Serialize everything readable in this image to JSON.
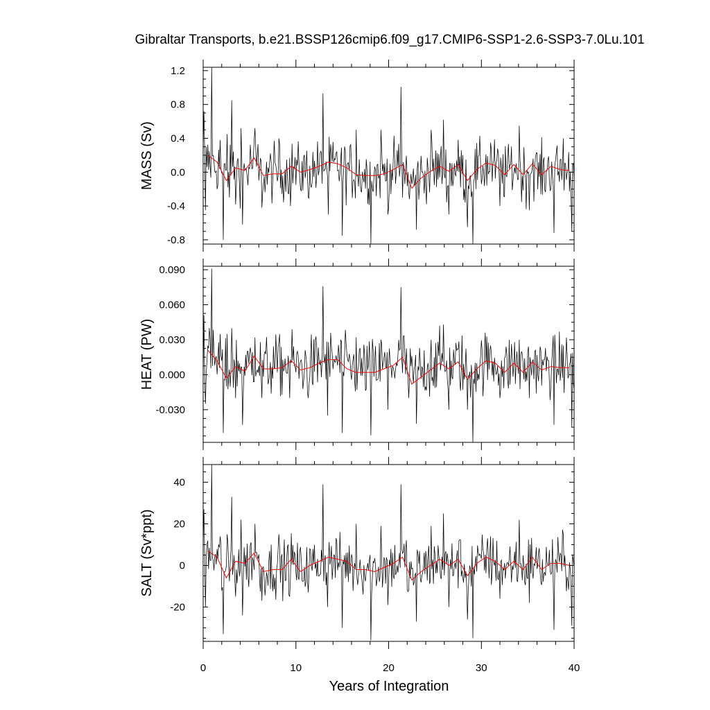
{
  "title": "Gibraltar Transports, b.e21.BSSP126cmip6.f09_g17.CMIP6-SSP1-2.6-SSP3-7.0Lu.101",
  "xlabel": "Years of Integration",
  "colors": {
    "monthly": "#000000",
    "annual": "#ff0000"
  },
  "chart_data": [
    {
      "type": "line",
      "title": "",
      "ylabel": "MASS (Sv)",
      "xlim": [
        0,
        40
      ],
      "ylim": [
        -0.85,
        1.24
      ],
      "yticks": [
        -0.8,
        -0.4,
        0.0,
        0.4,
        0.8,
        1.2
      ],
      "ytick_labels": [
        "-0.8",
        "-0.4",
        "0.0",
        "0.4",
        "0.8",
        "1.2"
      ],
      "xticks": [
        0,
        10,
        20,
        30,
        40
      ],
      "spikes": [
        [
          0.08,
          0.72
        ],
        [
          0.25,
          -0.45
        ],
        [
          0.95,
          1.24
        ],
        [
          1.8,
          0.38
        ],
        [
          2.15,
          -0.8
        ],
        [
          2.6,
          0.45
        ],
        [
          3.1,
          0.85
        ],
        [
          3.5,
          -0.38
        ],
        [
          4.1,
          0.52
        ],
        [
          4.25,
          -0.62
        ],
        [
          5.6,
          0.52
        ],
        [
          6.3,
          -0.42
        ],
        [
          8.2,
          0.4
        ],
        [
          9.4,
          -0.4
        ],
        [
          11.3,
          -0.3
        ],
        [
          12.95,
          0.93
        ],
        [
          13.5,
          -0.5
        ],
        [
          15.0,
          -0.75
        ],
        [
          16.5,
          0.5
        ],
        [
          18.1,
          -0.85
        ],
        [
          19.2,
          0.5
        ],
        [
          19.9,
          -0.5
        ],
        [
          21.3,
          1.01
        ],
        [
          21.5,
          -0.3
        ],
        [
          22.2,
          -0.25
        ],
        [
          23.0,
          -0.68
        ],
        [
          24.6,
          0.5
        ],
        [
          25.9,
          0.62
        ],
        [
          26.5,
          -0.5
        ],
        [
          28.5,
          -0.65
        ],
        [
          29.05,
          -0.85
        ],
        [
          31.0,
          0.35
        ],
        [
          32.0,
          -0.4
        ],
        [
          34.1,
          0.55
        ],
        [
          35.2,
          -0.45
        ],
        [
          37.8,
          -0.72
        ],
        [
          38.8,
          0.4
        ],
        [
          39.75,
          -0.7
        ]
      ],
      "series": [
        {
          "name": "",
          "type": "line",
          "color": "#000000",
          "amp": 0.17,
          "base": 0.0
        },
        {
          "name": "",
          "type": "line",
          "color": "#ff0000",
          "x": [
            0.5,
            1.5,
            2.5,
            3.5,
            4.5,
            5.5,
            6.5,
            7.5,
            8.5,
            9.5,
            10.5,
            11.5,
            12.5,
            13.5,
            14.5,
            15.5,
            16.5,
            17.5,
            18.5,
            19.5,
            20.5,
            21.5,
            22.5,
            23.5,
            24.5,
            25.5,
            26.5,
            27.5,
            28.5,
            29.5,
            30.5,
            31.5,
            32.5,
            33.5,
            34.5,
            35.5,
            36.5,
            37.5,
            38.5,
            39.5
          ],
          "y": [
            0.2,
            0.12,
            -0.1,
            0.05,
            0.02,
            0.17,
            -0.04,
            -0.02,
            -0.02,
            0.07,
            0.0,
            0.03,
            0.07,
            0.12,
            0.1,
            0.05,
            -0.03,
            -0.04,
            -0.04,
            -0.02,
            0.03,
            0.09,
            -0.19,
            -0.07,
            0.01,
            0.07,
            0.01,
            0.09,
            -0.1,
            0.03,
            0.11,
            0.08,
            -0.03,
            0.09,
            -0.03,
            0.1,
            -0.03,
            0.07,
            0.03,
            0.02
          ]
        }
      ]
    },
    {
      "type": "line",
      "title": "",
      "ylabel": "HEAT (PW)",
      "xlim": [
        0,
        40
      ],
      "ylim": [
        -0.058,
        0.093
      ],
      "yticks": [
        -0.03,
        0.0,
        0.03,
        0.06,
        0.09
      ],
      "ytick_labels": [
        "-0.030",
        "0.000",
        "0.030",
        "0.060",
        "0.090"
      ],
      "xticks": [
        0,
        10,
        20,
        30,
        40
      ],
      "spikes": [
        [
          0.08,
          0.051
        ],
        [
          0.25,
          -0.025
        ],
        [
          0.95,
          0.091
        ],
        [
          1.8,
          0.035
        ],
        [
          2.2,
          -0.05
        ],
        [
          2.6,
          0.035
        ],
        [
          3.1,
          0.04
        ],
        [
          3.5,
          -0.02
        ],
        [
          4.25,
          -0.043
        ],
        [
          5.6,
          0.032
        ],
        [
          6.3,
          -0.02
        ],
        [
          8.2,
          0.028
        ],
        [
          9.3,
          -0.02
        ],
        [
          11.3,
          -0.02
        ],
        [
          12.95,
          0.076
        ],
        [
          13.4,
          -0.035
        ],
        [
          15.0,
          -0.05
        ],
        [
          16.5,
          0.032
        ],
        [
          18.1,
          -0.052
        ],
        [
          19.2,
          0.03
        ],
        [
          19.9,
          -0.03
        ],
        [
          21.3,
          0.075
        ],
        [
          22.2,
          -0.02
        ],
        [
          23.0,
          -0.042
        ],
        [
          24.6,
          0.03
        ],
        [
          25.9,
          0.043
        ],
        [
          26.5,
          -0.03
        ],
        [
          28.5,
          -0.03
        ],
        [
          29.05,
          -0.058
        ],
        [
          31.0,
          0.025
        ],
        [
          32.0,
          -0.02
        ],
        [
          34.1,
          0.03
        ],
        [
          35.2,
          -0.02
        ],
        [
          37.8,
          -0.043
        ],
        [
          38.8,
          0.025
        ],
        [
          39.75,
          -0.045
        ]
      ],
      "series": [
        {
          "name": "",
          "type": "line",
          "color": "#000000",
          "amp": 0.013,
          "base": 0.004
        },
        {
          "name": "",
          "type": "line",
          "color": "#ff0000",
          "x": [
            0.5,
            1.5,
            2.5,
            3.5,
            4.5,
            5.5,
            6.5,
            7.5,
            8.5,
            9.5,
            10.5,
            11.5,
            12.5,
            13.5,
            14.5,
            15.5,
            16.5,
            17.5,
            18.5,
            19.5,
            20.5,
            21.5,
            22.5,
            23.5,
            24.5,
            25.5,
            26.5,
            27.5,
            28.5,
            29.5,
            30.5,
            31.5,
            32.5,
            33.5,
            34.5,
            35.5,
            36.5,
            37.5,
            38.5,
            39.5
          ],
          "y": [
            0.021,
            0.012,
            -0.003,
            0.007,
            0.003,
            0.016,
            0.005,
            0.005,
            0.006,
            0.012,
            0.004,
            0.006,
            0.01,
            0.013,
            0.013,
            0.005,
            0.002,
            0.002,
            0.002,
            0.005,
            0.008,
            0.015,
            -0.008,
            -0.002,
            0.004,
            0.01,
            0.005,
            0.011,
            -0.004,
            0.005,
            0.012,
            0.01,
            0.002,
            0.01,
            0.002,
            0.011,
            0.004,
            0.007,
            0.006,
            0.006
          ]
        }
      ]
    },
    {
      "type": "line",
      "title": "",
      "ylabel": "SALT (Sv*ppt)",
      "xlim": [
        0,
        40
      ],
      "ylim": [
        -36.5,
        48.5
      ],
      "yticks": [
        -20,
        0,
        20,
        40
      ],
      "ytick_labels": [
        "-20",
        "0",
        "20",
        "40"
      ],
      "xticks": [
        0,
        10,
        20,
        30,
        40
      ],
      "xtick_labels": [
        "0",
        "10",
        "20",
        "30",
        "40"
      ],
      "spikes": [
        [
          0.08,
          27
        ],
        [
          0.25,
          -20
        ],
        [
          0.95,
          48.5
        ],
        [
          1.8,
          14
        ],
        [
          2.2,
          -33
        ],
        [
          2.6,
          15
        ],
        [
          3.1,
          33
        ],
        [
          3.5,
          -15
        ],
        [
          4.1,
          22
        ],
        [
          4.25,
          -24
        ],
        [
          5.6,
          20
        ],
        [
          6.3,
          -17
        ],
        [
          8.2,
          15
        ],
        [
          9.3,
          -15
        ],
        [
          11.3,
          -13
        ],
        [
          12.95,
          39
        ],
        [
          13.4,
          -20
        ],
        [
          15.0,
          -30
        ],
        [
          16.5,
          20
        ],
        [
          18.1,
          -36
        ],
        [
          19.2,
          19
        ],
        [
          19.9,
          -19
        ],
        [
          21.3,
          39
        ],
        [
          22.2,
          -12
        ],
        [
          23.0,
          -27
        ],
        [
          24.6,
          19
        ],
        [
          25.9,
          25
        ],
        [
          26.5,
          -20
        ],
        [
          28.5,
          -26
        ],
        [
          29.05,
          -35
        ],
        [
          31.0,
          14
        ],
        [
          32.0,
          -16
        ],
        [
          34.1,
          22
        ],
        [
          35.2,
          -18
        ],
        [
          37.8,
          -31
        ],
        [
          38.8,
          15
        ],
        [
          39.75,
          -29
        ]
      ],
      "series": [
        {
          "name": "",
          "type": "line",
          "color": "#000000",
          "amp": 6.5,
          "base": 0.0
        },
        {
          "name": "",
          "type": "line",
          "color": "#ff0000",
          "x": [
            0.5,
            1.5,
            2.5,
            3.5,
            4.5,
            5.5,
            6.5,
            7.5,
            8.5,
            9.5,
            10.5,
            11.5,
            12.5,
            13.5,
            14.5,
            15.5,
            16.5,
            17.5,
            18.5,
            19.5,
            20.5,
            21.5,
            22.5,
            23.5,
            24.5,
            25.5,
            26.5,
            27.5,
            28.5,
            29.5,
            30.5,
            31.5,
            32.5,
            33.5,
            34.5,
            35.5,
            36.5,
            37.5,
            38.5,
            39.5
          ],
          "y": [
            7,
            4,
            -6,
            2,
            1,
            6,
            -3,
            -2,
            -2,
            3,
            -3,
            0,
            2,
            4,
            3,
            2,
            -2,
            -2,
            -3,
            -1,
            1,
            4,
            -7,
            -3,
            0,
            3,
            0,
            3,
            -5,
            1,
            4,
            2,
            -2,
            2,
            -2,
            4,
            -2,
            1,
            1,
            0
          ]
        }
      ]
    }
  ]
}
